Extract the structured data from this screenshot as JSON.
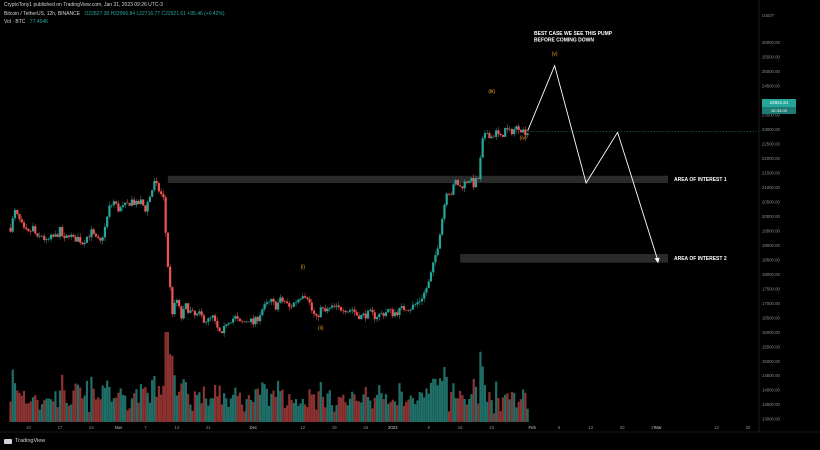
{
  "header": {
    "publisher_line": "CryptoTony1 published on TradingView.com, Jan 31, 2023 09:26 UTC-3",
    "symbol": "Bitcoin / TetherUS, 12h, BINANCE",
    "ohlc": "O22827.38 H22996.84 L22716.77 C22921.61 +95.46 (+0.42%)",
    "volume_label": "Vol · BTC",
    "volume_value": "77.454K"
  },
  "price_badge": {
    "price": "22921.61",
    "countdown": "02:33:03",
    "ticker": "BTCUSDT"
  },
  "footer": {
    "brand": "TradingView"
  },
  "colors": {
    "up": "#26a69a",
    "down": "#ef5350",
    "background": "#000000",
    "zone": "#2a2a2a",
    "annotation": "#f5a623"
  },
  "chart_data": {
    "type": "candlestick",
    "symbol": "BTCUSDT",
    "interval": "12h",
    "currency_unit": "USDT",
    "y_ticks": [
      13000,
      13500,
      14000,
      14500,
      15000,
      15500,
      16000,
      16500,
      17000,
      17500,
      18000,
      18500,
      19000,
      19500,
      20000,
      20500,
      21000,
      21500,
      22000,
      22500,
      23000,
      23500,
      24000,
      24500,
      25000,
      25500,
      26000
    ],
    "y_tick_labels": [
      "13000.00",
      "13500.00",
      "14000.00",
      "14500.00",
      "15000.00",
      "15500.00",
      "16000.00",
      "16500.00",
      "17000.00",
      "17500.00",
      "18000.00",
      "18500.00",
      "19000.00",
      "19500.00",
      "20000.00",
      "20500.00",
      "21000.00",
      "21500.00",
      "22000.00",
      "22500.00",
      "23000.00",
      "23500.00",
      "24000.00",
      "24500.00",
      "25000.00",
      "25500.00",
      "26000.00"
    ],
    "ylim": [
      12900,
      26500
    ],
    "x_tick_labels": [
      "10",
      "17",
      "24",
      "Nov",
      "7",
      "14",
      "21",
      "Dec",
      "12",
      "19",
      "26",
      "2023",
      "9",
      "16",
      "23",
      "Feb",
      "6",
      "13",
      "20",
      "27",
      "Mar",
      "13",
      "20"
    ],
    "x_tick_days": [
      -81,
      -74,
      -67,
      -61,
      -55,
      -48,
      -41,
      -31,
      -20,
      -13,
      -6,
      0,
      8,
      15,
      22,
      31,
      37,
      44,
      51,
      58,
      59,
      72,
      79
    ],
    "y_axis_label": "USDT",
    "close_path": [
      [
        -85,
        19600
      ],
      [
        -84,
        20150
      ],
      [
        -83,
        19850
      ],
      [
        -82,
        19500
      ],
      [
        -81,
        19400
      ],
      [
        -80,
        19600
      ],
      [
        -79,
        19200
      ],
      [
        -78,
        19350
      ],
      [
        -77,
        19100
      ],
      [
        -76,
        19250
      ],
      [
        -75,
        19300
      ],
      [
        -74,
        19500
      ],
      [
        -73,
        19150
      ],
      [
        -72,
        19400
      ],
      [
        -71,
        19200
      ],
      [
        -70,
        19250
      ],
      [
        -69,
        19100
      ],
      [
        -68,
        19300
      ],
      [
        -67,
        19450
      ],
      [
        -66,
        19200
      ],
      [
        -65,
        19100
      ],
      [
        -64,
        19600
      ],
      [
        -63,
        20300
      ],
      [
        -62,
        20500
      ],
      [
        -61,
        20250
      ],
      [
        -60,
        20300
      ],
      [
        -59,
        20400
      ],
      [
        -58,
        20550
      ],
      [
        -57,
        20400
      ],
      [
        -56,
        20500
      ],
      [
        -55,
        20250
      ],
      [
        -54,
        20700
      ],
      [
        -53,
        21150
      ],
      [
        -52,
        20900
      ],
      [
        -51,
        20600
      ],
      [
        -50,
        18300
      ],
      [
        -49,
        16700
      ],
      [
        -48,
        17100
      ],
      [
        -47,
        16500
      ],
      [
        -46,
        16900
      ],
      [
        -45,
        16700
      ],
      [
        -44,
        16550
      ],
      [
        -43,
        16600
      ],
      [
        -42,
        16450
      ],
      [
        -41,
        16400
      ],
      [
        -40,
        16500
      ],
      [
        -39,
        16100
      ],
      [
        -38,
        15850
      ],
      [
        -37,
        16350
      ],
      [
        -36,
        16450
      ],
      [
        -35,
        16500
      ],
      [
        -34,
        16300
      ],
      [
        -33,
        16350
      ],
      [
        -32,
        16450
      ],
      [
        -31,
        16300
      ],
      [
        -30,
        16500
      ],
      [
        -29,
        16800
      ],
      [
        -28,
        16950
      ],
      [
        -27,
        17050
      ],
      [
        -26,
        16900
      ],
      [
        -25,
        17100
      ],
      [
        -24,
        17050
      ],
      [
        -23,
        16850
      ],
      [
        -22,
        17000
      ],
      [
        -21,
        17150
      ],
      [
        -20,
        17350
      ],
      [
        -19,
        17250
      ],
      [
        -18,
        16750
      ],
      [
        -17,
        16450
      ],
      [
        -16,
        16800
      ],
      [
        -15,
        16700
      ],
      [
        -14,
        16800
      ],
      [
        -13,
        16850
      ],
      [
        -12,
        16800
      ],
      [
        -11,
        16850
      ],
      [
        -10,
        16750
      ],
      [
        -9,
        16800
      ],
      [
        -8,
        16600
      ],
      [
        -7,
        16550
      ],
      [
        -6,
        16600
      ],
      [
        -5,
        16650
      ],
      [
        -4,
        16550
      ],
      [
        -3,
        16600
      ],
      [
        -2,
        16650
      ],
      [
        -1,
        16750
      ],
      [
        0,
        16650
      ],
      [
        1,
        16700
      ],
      [
        2,
        16800
      ],
      [
        3,
        16850
      ],
      [
        4,
        16850
      ],
      [
        5,
        16950
      ],
      [
        6,
        17100
      ],
      [
        7,
        17350
      ],
      [
        8,
        17700
      ],
      [
        9,
        18300
      ],
      [
        10,
        19000
      ],
      [
        11,
        19950
      ],
      [
        12,
        20900
      ],
      [
        13,
        20800
      ],
      [
        14,
        21200
      ],
      [
        15,
        21000
      ],
      [
        16,
        21150
      ],
      [
        17,
        21300
      ],
      [
        18,
        21100
      ],
      [
        19,
        21300
      ],
      [
        20,
        22600
      ],
      [
        21,
        22900
      ],
      [
        22,
        22750
      ],
      [
        23,
        22900
      ],
      [
        24,
        22700
      ],
      [
        25,
        23000
      ],
      [
        26,
        22900
      ],
      [
        27,
        23000
      ],
      [
        28,
        23100
      ],
      [
        29,
        22950
      ],
      [
        30,
        22900
      ]
    ],
    "horizontal_zones": [
      {
        "label": "AREA OF INTEREST 1",
        "low": 21150,
        "high": 21400,
        "from_day": -50
      },
      {
        "label": "AREA OF INTEREST 2",
        "low": 18400,
        "high": 18700,
        "from_day": 15
      }
    ],
    "wave_labels": [
      {
        "text": "(i)",
        "day": -20,
        "price": 18200
      },
      {
        "text": "(ii)",
        "day": -16,
        "price": 16100
      },
      {
        "text": "(iii)",
        "day": 22,
        "price": 24250
      },
      {
        "text": "(iv)",
        "day": 29,
        "price": 22650
      },
      {
        "text": "(v)",
        "day": 36,
        "price": 25550
      }
    ],
    "projection_path": [
      [
        30,
        22950
      ],
      [
        36,
        25200
      ],
      [
        43,
        21150
      ],
      [
        50,
        22900
      ],
      [
        59,
        18450
      ]
    ],
    "annotations": [
      "BEST CASE WE SEE THIS PUMP",
      "BEFORE COMING DOWN"
    ]
  }
}
